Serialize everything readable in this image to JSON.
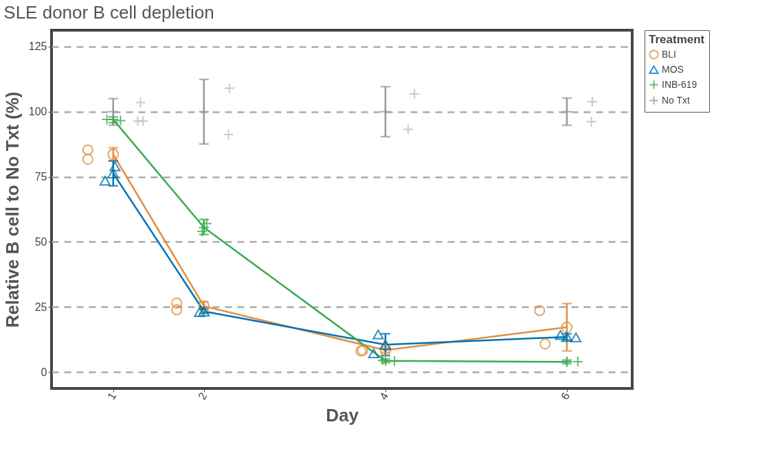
{
  "chart_data": {
    "type": "line",
    "title": "SLE donor B cell depletion",
    "xlabel": "Day",
    "ylabel": "Relative B cell to No Txt (%)",
    "legend_title": "Treatment",
    "legend": "top right",
    "grid": "y",
    "x": [
      1,
      2,
      4,
      6
    ],
    "xlim": [
      0.32,
      6.72
    ],
    "xticks": [
      1,
      2,
      4,
      6
    ],
    "ylim": [
      -6.3,
      131.3
    ],
    "yticks": [
      0,
      25,
      50,
      75,
      100,
      125
    ],
    "series": [
      {
        "name": "BLI",
        "color": "#e08f3e",
        "marker": "circle",
        "values": [
          83.6,
          25.3,
          8.4,
          17.2
        ],
        "errors": [
          [
            81.1,
            86.1
          ],
          [
            24,
            27
          ],
          [
            7.5,
            9.3
          ],
          [
            8.1,
            26.3
          ]
        ]
      },
      {
        "name": "MOS",
        "color": "#0072b2",
        "marker": "triangle",
        "values": [
          76.3,
          23.3,
          10.5,
          13.5
        ],
        "errors": [
          [
            71.5,
            81.1
          ],
          [
            22.5,
            24.3
          ],
          [
            6.3,
            14.7
          ],
          [
            12.3,
            14.7
          ]
        ]
      },
      {
        "name": "INB-619",
        "color": "#3aaa4e",
        "marker": "cross",
        "values": [
          97,
          55.5,
          4.3,
          3.9
        ],
        "errors": [
          [
            95.8,
            98
          ],
          [
            52.8,
            58.6
          ],
          [
            3.6,
            5
          ],
          [
            3.2,
            4.6
          ]
        ]
      },
      {
        "name": "No Txt",
        "type": "scatter",
        "color": "#999999",
        "marker": "cross",
        "values": [
          100,
          100,
          100,
          100
        ],
        "errors": [
          [
            94.8,
            105
          ],
          [
            87.6,
            112.4
          ],
          [
            90.4,
            109.6
          ],
          [
            94.8,
            105.2
          ]
        ]
      },
      {
        "type": "scatter",
        "color": "#e08f3e",
        "marker": "circle",
        "x": [
          0.72,
          0.72,
          1.7,
          1.7,
          3.73,
          3.75,
          5.7,
          5.76
        ],
        "values": [
          85.3,
          81.7,
          26.5,
          23.9,
          8.1,
          8.3,
          23.6,
          10.8
        ]
      },
      {
        "type": "scatter",
        "color": "#0072b2",
        "marker": "triangle",
        "x": [
          0.91,
          1.02,
          1.95,
          3.92,
          3.87,
          5.93,
          6.1
        ],
        "values": [
          73.5,
          79,
          23,
          14.4,
          7.2,
          14.2,
          13.3
        ]
      },
      {
        "type": "scatter",
        "color": "#3aaa4e",
        "marker": "cross",
        "x": [
          0.93,
          1.08,
          2.03,
          1.98,
          3.97,
          4.1,
          6.0,
          6.12
        ],
        "values": [
          97,
          96.6,
          57,
          54,
          4.5,
          4.2,
          4.0,
          4.0
        ]
      },
      {
        "type": "scatter",
        "color": "#bbbbbb",
        "marker": "cross",
        "x": [
          1.3,
          1.27,
          1.33,
          2.28,
          2.27,
          4.32,
          4.25,
          6.28,
          6.27
        ],
        "values": [
          103.5,
          96.4,
          96.4,
          109,
          91.2,
          106.8,
          93.2,
          103.8,
          96.2
        ]
      }
    ]
  }
}
